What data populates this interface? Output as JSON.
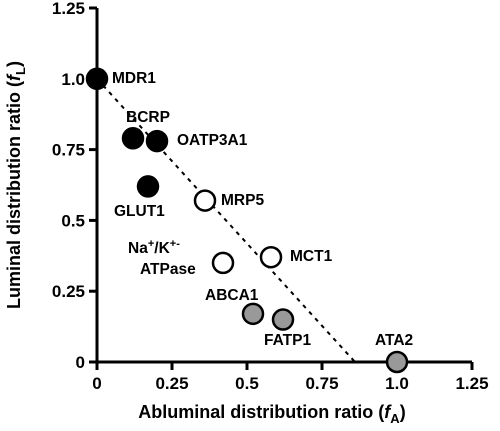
{
  "chart_data": {
    "type": "scatter",
    "xlabel": "Abluminal distribution ratio (",
    "xlabel_var": "f",
    "xlabel_sub": "A",
    "xlabel_close": ")",
    "ylabel": "Luminal distribution ratio (",
    "ylabel_var": "f",
    "ylabel_sub": "L",
    "ylabel_close": ")",
    "xlim": [
      0,
      1.25
    ],
    "ylim": [
      0,
      1.25
    ],
    "x_ticks": [
      {
        "value": 0,
        "label": "0"
      },
      {
        "value": 0.25,
        "label": "0.25"
      },
      {
        "value": 0.5,
        "label": "0.5"
      },
      {
        "value": 0.75,
        "label": "0.75"
      },
      {
        "value": 1.0,
        "label": "1.0"
      },
      {
        "value": 1.25,
        "label": "1.25"
      }
    ],
    "y_ticks": [
      {
        "value": 0,
        "label": "0"
      },
      {
        "value": 0.25,
        "label": "0.25"
      },
      {
        "value": 0.5,
        "label": "0.5"
      },
      {
        "value": 0.75,
        "label": "0.75"
      },
      {
        "value": 1.0,
        "label": "1.0"
      },
      {
        "value": 1.25,
        "label": "1.25"
      }
    ],
    "grid": false,
    "legend": "none",
    "points": [
      {
        "label": "MDR1",
        "x": 0.0,
        "y": 1.0,
        "color": "#000000",
        "stroke": "#000000"
      },
      {
        "label": "BCRP",
        "x": 0.12,
        "y": 0.79,
        "color": "#000000",
        "stroke": "#000000"
      },
      {
        "label": "OATP3A1",
        "x": 0.2,
        "y": 0.78,
        "color": "#000000",
        "stroke": "#000000"
      },
      {
        "label": "GLUT1",
        "x": 0.17,
        "y": 0.62,
        "color": "#000000",
        "stroke": "#000000"
      },
      {
        "label": "MRP5",
        "x": 0.36,
        "y": 0.57,
        "color": "#ffffff",
        "stroke": "#000000"
      },
      {
        "label": "MCT1",
        "x": 0.58,
        "y": 0.37,
        "color": "#ffffff",
        "stroke": "#000000"
      },
      {
        "label": "Na+/K+-ATPase",
        "x": 0.42,
        "y": 0.35,
        "color": "#ffffff",
        "stroke": "#000000"
      },
      {
        "label": "ABCA1",
        "x": 0.52,
        "y": 0.17,
        "color": "#999999",
        "stroke": "#000000"
      },
      {
        "label": "FATP1",
        "x": 0.62,
        "y": 0.15,
        "color": "#999999",
        "stroke": "#000000"
      },
      {
        "label": "ATA2",
        "x": 1.0,
        "y": 0.0,
        "color": "#999999",
        "stroke": "#000000"
      }
    ],
    "trend_line": {
      "style": "dashed",
      "from": [
        0,
        1.0
      ],
      "to": [
        0.86,
        0
      ]
    },
    "label_texts": {
      "mdr1": "MDR1",
      "bcrp": "BCRP",
      "oatp3a1": "OATP3A1",
      "glut1": "GLUT1",
      "mrp5": "MRP5",
      "mct1": "MCT1",
      "na": "Na",
      "plus1": "+",
      "slash_k": "/K",
      "plus2": "+",
      "dash": "-",
      "atpase": "ATPase",
      "abca1": "ABCA1",
      "fatp1": "FATP1",
      "ata2": "ATA2"
    }
  }
}
